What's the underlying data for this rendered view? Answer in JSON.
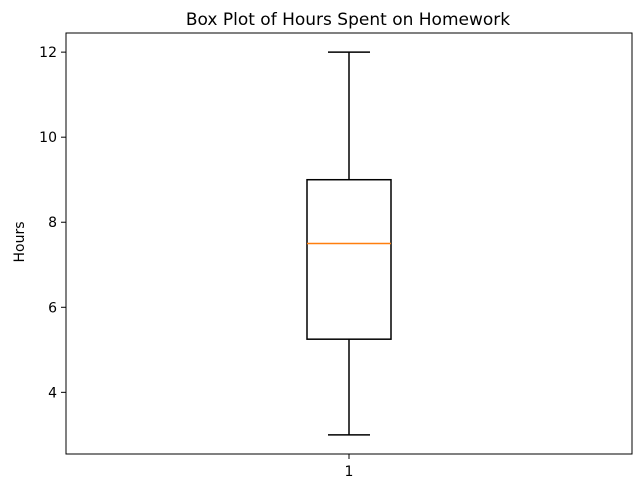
{
  "chart_data": {
    "type": "box",
    "title": "Box Plot of Hours Spent on Homework",
    "xlabel": "",
    "ylabel": "Hours",
    "categories": [
      "1"
    ],
    "boxes": [
      {
        "category": "1",
        "whisker_low": 3,
        "q1": 5.25,
        "median": 7.5,
        "q3": 9,
        "whisker_high": 12
      }
    ],
    "y_ticks": [
      4,
      6,
      8,
      10,
      12
    ],
    "y_tick_labels": [
      "4",
      "6",
      "8",
      "10",
      "12"
    ],
    "ylim": [
      2.55,
      12.45
    ],
    "xlim": [
      0.5,
      1.5
    ],
    "grid": false,
    "colors": {
      "box": "#000000",
      "median": "#ff7f0e",
      "whisker": "#000000"
    }
  }
}
